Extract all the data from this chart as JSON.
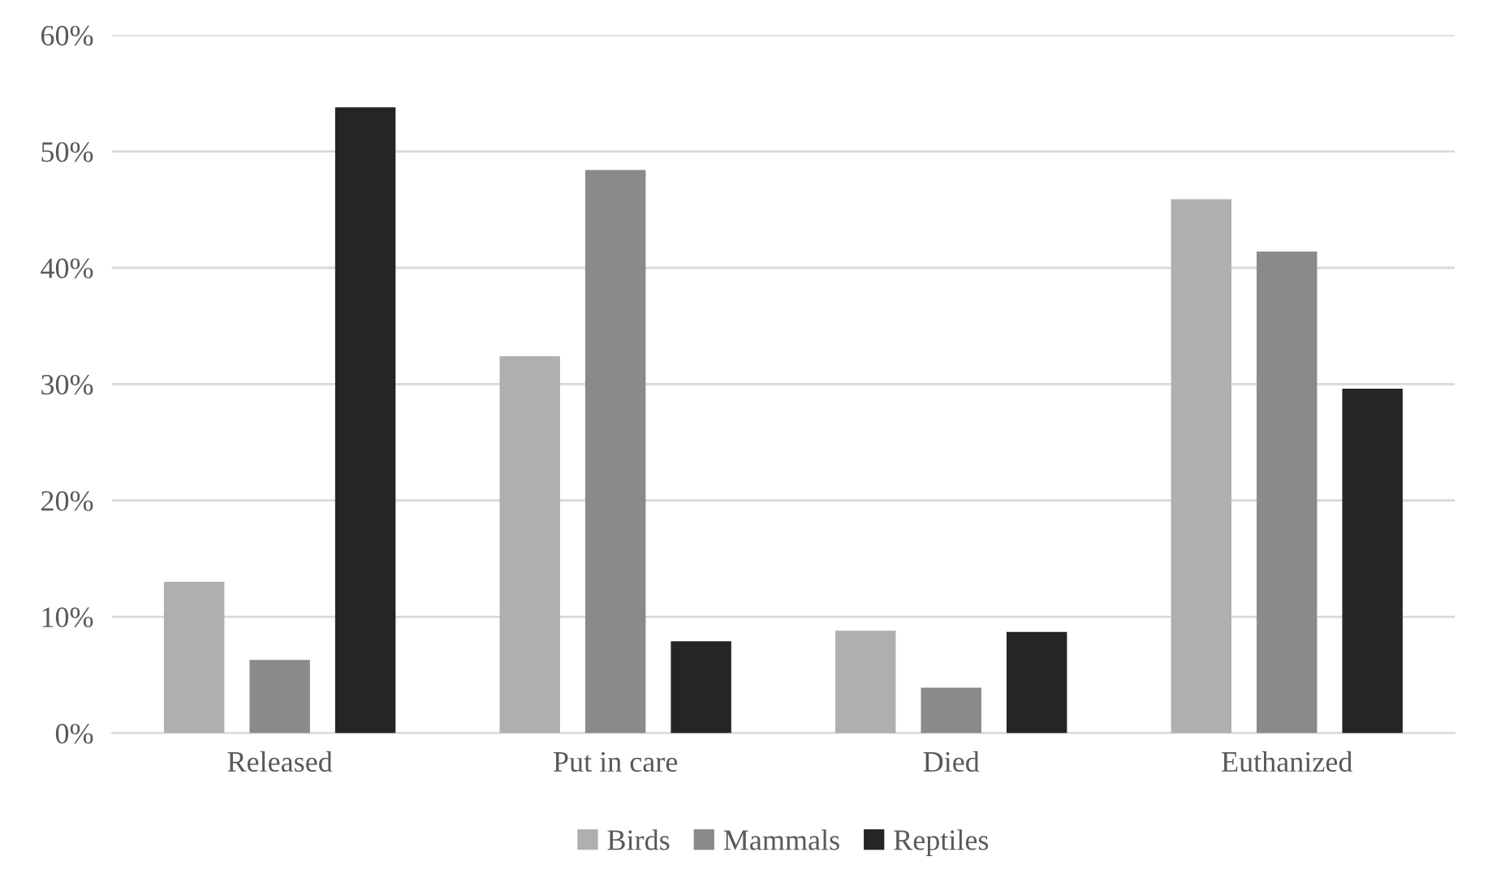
{
  "chart_data": {
    "type": "bar",
    "categories": [
      "Released",
      "Put in care",
      "Died",
      "Euthanized"
    ],
    "series": [
      {
        "name": "Birds",
        "color": "#afafaf",
        "values": [
          13.0,
          32.4,
          8.8,
          45.9
        ]
      },
      {
        "name": "Mammals",
        "color": "#8a8a8a",
        "values": [
          6.3,
          48.4,
          3.9,
          41.4
        ]
      },
      {
        "name": "Reptiles",
        "color": "#252525",
        "values": [
          53.8,
          7.9,
          8.7,
          29.6
        ]
      }
    ],
    "ylim": [
      0,
      60
    ],
    "yticks": [
      {
        "value": 0,
        "label": "0%"
      },
      {
        "value": 10,
        "label": "10%"
      },
      {
        "value": 20,
        "label": "20%"
      },
      {
        "value": 30,
        "label": "30%"
      },
      {
        "value": 40,
        "label": "40%"
      },
      {
        "value": 50,
        "label": "50%"
      },
      {
        "value": 60,
        "label": "60%"
      }
    ],
    "grid": "y",
    "legend": "bottom"
  }
}
